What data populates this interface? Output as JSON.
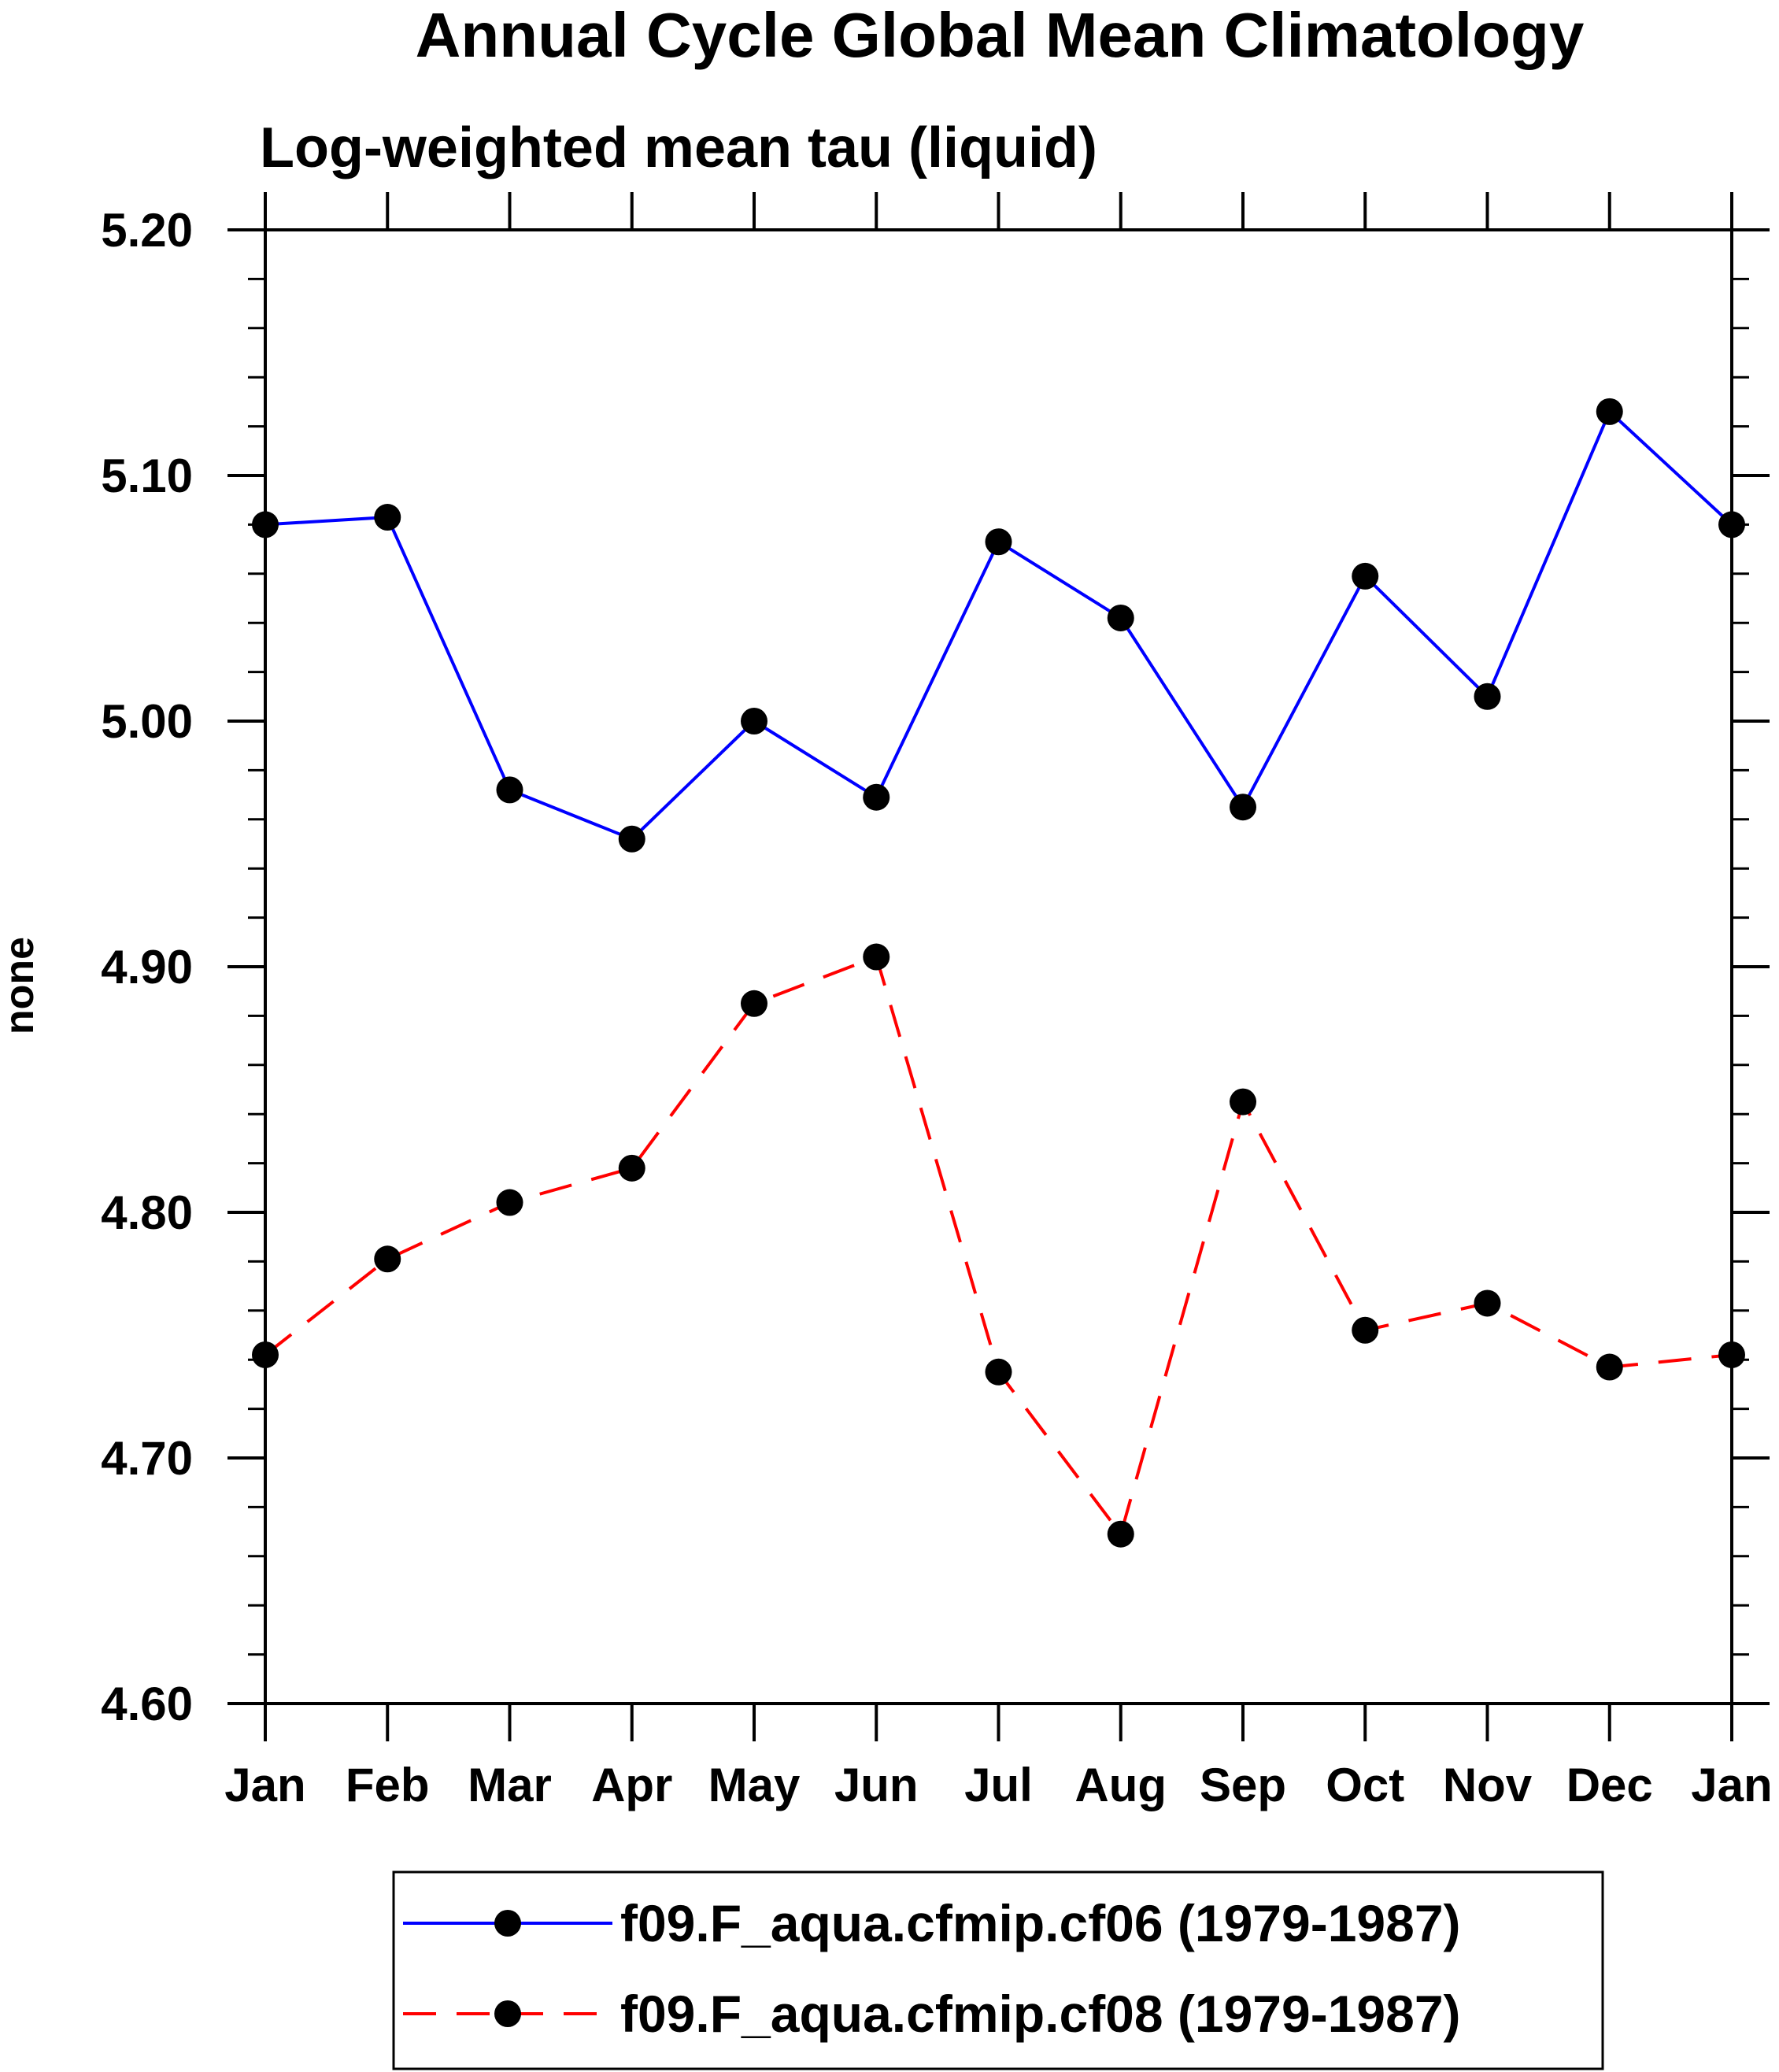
{
  "chart_data": {
    "type": "line",
    "title": "Annual Cycle Global Mean Climatology",
    "subtitle": "Log-weighted mean tau (liquid)",
    "xlabel": "",
    "ylabel": "none",
    "categories": [
      "Jan",
      "Feb",
      "Mar",
      "Apr",
      "May",
      "Jun",
      "Jul",
      "Aug",
      "Sep",
      "Oct",
      "Nov",
      "Dec",
      "Jan"
    ],
    "ylim": [
      4.6,
      5.2
    ],
    "ytick_labels": [
      "4.60",
      "4.70",
      "4.80",
      "4.90",
      "5.00",
      "5.10",
      "5.20"
    ],
    "grid": false,
    "legend_position": "bottom",
    "series": [
      {
        "name": "f09.F_aqua.cfmip.cf06 (1979-1987)",
        "color": "#0000ff",
        "line_style": "solid",
        "marker": "filled-circle",
        "values": [
          5.08,
          5.083,
          4.972,
          4.952,
          5.0,
          4.969,
          5.073,
          5.042,
          4.965,
          5.059,
          5.01,
          5.126,
          5.08
        ]
      },
      {
        "name": "f09.F_aqua.cfmip.cf08 (1979-1987)",
        "color": "#ff0000",
        "line_style": "dashed",
        "marker": "filled-circle",
        "values": [
          4.742,
          4.781,
          4.804,
          4.818,
          4.885,
          4.904,
          4.735,
          4.669,
          4.845,
          4.752,
          4.763,
          4.737,
          4.742
        ]
      }
    ]
  }
}
